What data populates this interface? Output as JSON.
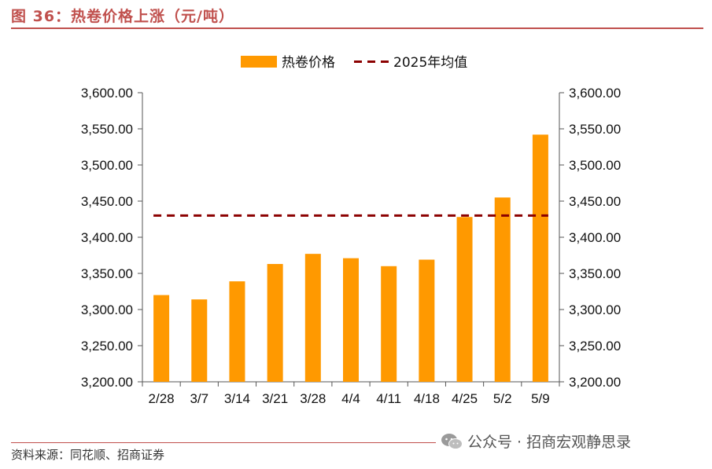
{
  "header": {
    "figure_title": "图 36：热卷价格上涨（元/吨）"
  },
  "footer": {
    "source": "资料来源：同花顺、招商证券"
  },
  "watermark": {
    "icon": "wechat-icon",
    "text": "公众号 · 招商宏观静思录"
  },
  "chart_data": {
    "type": "bar",
    "title": "",
    "xlabel": "",
    "ylabel": "",
    "categories": [
      "2/28",
      "3/7",
      "3/14",
      "3/21",
      "3/28",
      "4/4",
      "4/11",
      "4/18",
      "4/25",
      "5/2",
      "5/9"
    ],
    "series": [
      {
        "name": "热卷价格",
        "type": "bar",
        "color": "#ff9900",
        "values": [
          3320,
          3314,
          3339,
          3363,
          3377,
          3371,
          3360,
          3369,
          3428,
          3455,
          3542
        ]
      },
      {
        "name": "2025年均值",
        "type": "line",
        "style": "dashed",
        "color": "#8b0000",
        "values": [
          3430,
          3430,
          3430,
          3430,
          3430,
          3430,
          3430,
          3430,
          3430,
          3430,
          3430
        ]
      }
    ],
    "ylim": [
      3200,
      3600
    ],
    "yticks": [
      "3,200.00",
      "3,250.00",
      "3,300.00",
      "3,350.00",
      "3,400.00",
      "3,450.00",
      "3,500.00",
      "3,550.00",
      "3,600.00"
    ],
    "y_axes": "left-and-right",
    "legend": "top-center",
    "grid": false
  }
}
